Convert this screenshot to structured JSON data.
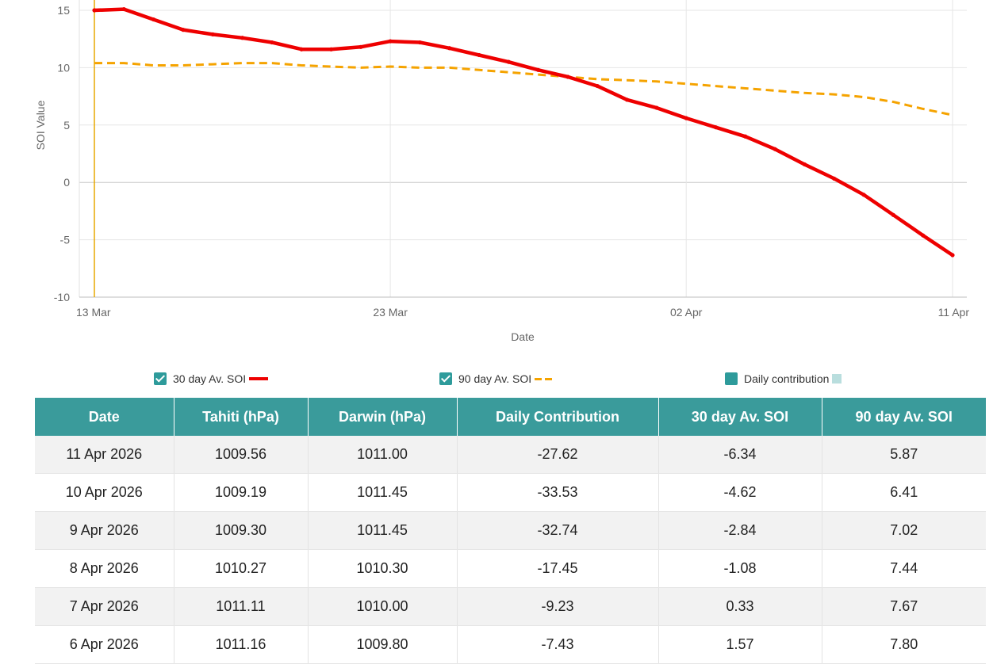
{
  "chart_data": {
    "type": "line",
    "title": "",
    "xlabel": "Date",
    "ylabel": "SOI Value",
    "ylim": [
      -10,
      15
    ],
    "y_ticks": [
      15,
      10,
      5,
      0,
      -5,
      -10
    ],
    "x_ticks": [
      {
        "date": "2026-03-13",
        "label": "13 Mar"
      },
      {
        "date": "2026-03-23",
        "label": "23 Mar"
      },
      {
        "date": "2026-04-02",
        "label": "02 Apr"
      },
      {
        "date": "2026-04-11",
        "label": "11 Apr"
      }
    ],
    "dates": [
      "2026-03-13",
      "2026-03-14",
      "2026-03-15",
      "2026-03-16",
      "2026-03-17",
      "2026-03-18",
      "2026-03-19",
      "2026-03-20",
      "2026-03-21",
      "2026-03-22",
      "2026-03-23",
      "2026-03-24",
      "2026-03-25",
      "2026-03-26",
      "2026-03-27",
      "2026-03-28",
      "2026-03-29",
      "2026-03-30",
      "2026-03-31",
      "2026-04-01",
      "2026-04-02",
      "2026-04-03",
      "2026-04-04",
      "2026-04-05",
      "2026-04-06",
      "2026-04-07",
      "2026-04-08",
      "2026-04-09",
      "2026-04-10",
      "2026-04-11"
    ],
    "series": [
      {
        "name": "30 day Av. SOI",
        "color": "#ee0000",
        "style": "solid",
        "values": [
          15.0,
          15.1,
          14.2,
          13.3,
          12.9,
          12.6,
          12.2,
          11.6,
          11.6,
          11.8,
          12.3,
          12.2,
          11.7,
          11.1,
          10.5,
          9.8,
          9.2,
          8.4,
          7.2,
          6.5,
          5.6,
          4.8,
          4.0,
          2.9,
          1.57,
          0.33,
          -1.08,
          -2.84,
          -4.62,
          -6.34
        ]
      },
      {
        "name": "90 day Av. SOI",
        "color": "#f5a300",
        "style": "dashed",
        "values": [
          10.4,
          10.4,
          10.2,
          10.2,
          10.3,
          10.4,
          10.4,
          10.2,
          10.1,
          10.0,
          10.1,
          10.0,
          10.0,
          9.8,
          9.6,
          9.4,
          9.2,
          9.0,
          8.9,
          8.8,
          8.6,
          8.4,
          8.2,
          8.0,
          7.8,
          7.67,
          7.44,
          7.02,
          6.41,
          5.87
        ]
      }
    ],
    "marker_date": "2026-03-13",
    "grid": true,
    "legend_position": "bottom"
  },
  "legend": {
    "items": [
      {
        "label": "30 day Av. SOI",
        "checked": true
      },
      {
        "label": "90 day Av. SOI",
        "checked": true
      },
      {
        "label": "Daily contribution",
        "checked": false
      }
    ]
  },
  "table": {
    "headers": [
      "Date",
      "Tahiti (hPa)",
      "Darwin (hPa)",
      "Daily Contribution",
      "30 day Av. SOI",
      "90 day Av. SOI"
    ],
    "rows": [
      [
        "11 Apr 2026",
        "1009.56",
        "1011.00",
        "-27.62",
        "-6.34",
        "5.87"
      ],
      [
        "10 Apr 2026",
        "1009.19",
        "1011.45",
        "-33.53",
        "-4.62",
        "6.41"
      ],
      [
        "9 Apr 2026",
        "1009.30",
        "1011.45",
        "-32.74",
        "-2.84",
        "7.02"
      ],
      [
        "8 Apr 2026",
        "1010.27",
        "1010.30",
        "-17.45",
        "-1.08",
        "7.44"
      ],
      [
        "7 Apr 2026",
        "1011.11",
        "1010.00",
        "-9.23",
        "0.33",
        "7.67"
      ],
      [
        "6 Apr 2026",
        "1011.16",
        "1009.80",
        "-7.43",
        "1.57",
        "7.80"
      ]
    ]
  }
}
